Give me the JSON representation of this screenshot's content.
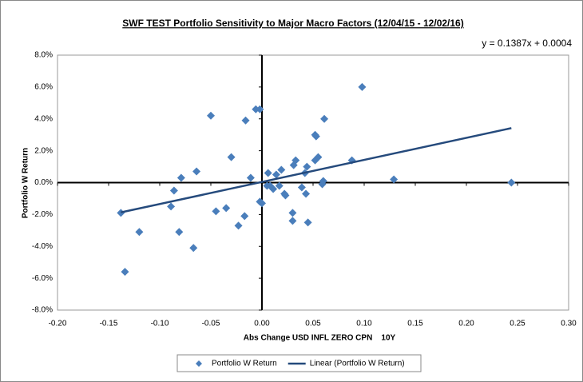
{
  "chart_data": {
    "type": "scatter",
    "title": "SWF TEST Portfolio Sensitivity to Major Macro Factors (12/04/15 - 12/02/16)",
    "annotation": "y = 0.1387x + 0.0004",
    "x_label": "Abs Change USD INFL ZERO CPN    10Y",
    "y_label": "Portfolio W Return",
    "xlim": [
      -0.2,
      0.3
    ],
    "ylim": [
      -8,
      8
    ],
    "xticks": [
      {
        "value": -0.2,
        "label": "-0.20"
      },
      {
        "value": -0.15,
        "label": "-0.15"
      },
      {
        "value": -0.1,
        "label": "-0.10"
      },
      {
        "value": -0.05,
        "label": "-0.05"
      },
      {
        "value": 0,
        "label": "0.00"
      },
      {
        "value": 0.05,
        "label": "0.05"
      },
      {
        "value": 0.1,
        "label": "0.10"
      },
      {
        "value": 0.15,
        "label": "0.15"
      },
      {
        "value": 0.2,
        "label": "0.20"
      },
      {
        "value": 0.25,
        "label": "0.25"
      },
      {
        "value": 0.3,
        "label": "0.30"
      }
    ],
    "yticks": [
      {
        "value": 8,
        "label": "8.0%"
      },
      {
        "value": 6,
        "label": "6.0%"
      },
      {
        "value": 4,
        "label": "4.0%"
      },
      {
        "value": 2,
        "label": "2.0%"
      },
      {
        "value": 0,
        "label": "0.0%"
      },
      {
        "value": -2,
        "label": "-2.0%"
      },
      {
        "value": -4,
        "label": "-4.0%"
      },
      {
        "value": -6,
        "label": "-6.0%"
      },
      {
        "value": -8,
        "label": "-8.0%"
      }
    ],
    "legend": "bottom",
    "series": [
      {
        "name": "Portfolio W Return",
        "color": "#4a7ebb",
        "x": [
          0.098,
          -0.05,
          -0.006,
          -0.002,
          -0.016,
          0.061,
          -0.03,
          -0.064,
          -0.079,
          -0.011,
          -0.086,
          -0.089,
          -0.045,
          -0.035,
          -0.017,
          -0.023,
          -0.138,
          -0.12,
          -0.081,
          -0.067,
          -0.134,
          0.006,
          0.014,
          0.019,
          0.005,
          0.011,
          0.017,
          0.022,
          0.023,
          -0.002,
          0.0,
          0.008,
          0.031,
          0.033,
          0.039,
          0.043,
          0.045,
          0.03,
          0.03,
          0.042,
          0.044,
          0.052,
          0.053,
          0.052,
          0.055,
          0.059,
          0.06,
          0.088,
          0.129,
          0.244
        ],
        "values": [
          6.0,
          4.2,
          4.6,
          4.6,
          3.9,
          4.0,
          1.6,
          0.7,
          0.3,
          0.3,
          -0.5,
          -1.5,
          -1.8,
          -1.6,
          -2.1,
          -2.7,
          -1.9,
          -3.1,
          -3.1,
          -4.1,
          -5.6,
          0.6,
          0.5,
          0.8,
          -0.2,
          -0.4,
          -0.2,
          -0.7,
          -0.8,
          -1.2,
          -1.3,
          -0.2,
          1.1,
          1.4,
          -0.3,
          -0.7,
          -2.5,
          -1.9,
          -2.4,
          0.6,
          1.0,
          3.0,
          2.9,
          1.4,
          1.6,
          -0.1,
          0.1,
          1.4,
          0.2,
          0.0
        ]
      },
      {
        "name": "Linear (Portfolio W Return)",
        "color": "#254a7c",
        "line": true,
        "x": [
          -0.138,
          0.244
        ],
        "values": [
          -1.87,
          3.42
        ]
      }
    ]
  }
}
